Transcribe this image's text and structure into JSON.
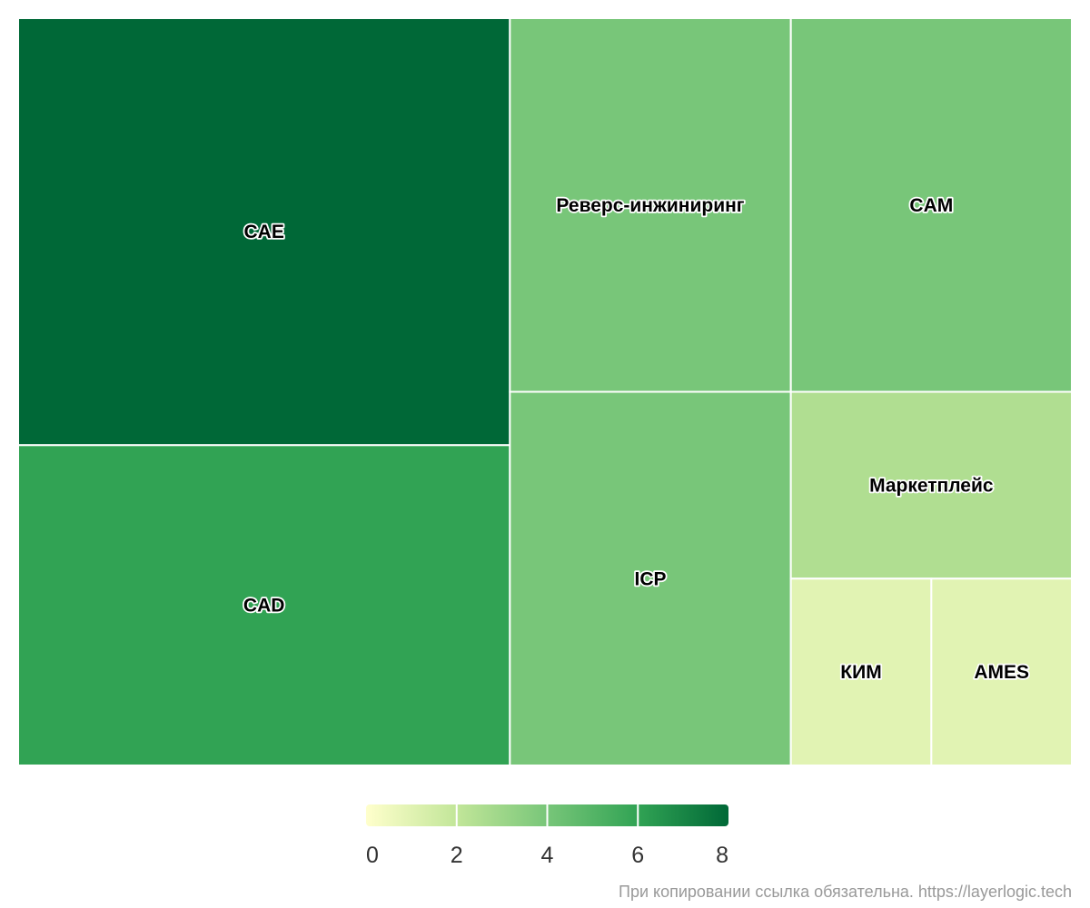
{
  "chart_data": {
    "type": "treemap",
    "title": "",
    "color_scale": {
      "min": 0,
      "max": 8,
      "ticks": [
        0,
        2,
        4,
        6,
        8
      ],
      "colors": [
        "#ffffcc",
        "#c2e699",
        "#78c679",
        "#31a354",
        "#006837"
      ]
    },
    "items": [
      {
        "name": "CAE",
        "value": 8,
        "color_value": 8
      },
      {
        "name": "CAD",
        "value": 6,
        "color_value": 6
      },
      {
        "name": "Реверс-инжиниринг",
        "value": 4,
        "color_value": 4
      },
      {
        "name": "CAM",
        "value": 4,
        "color_value": 4
      },
      {
        "name": "ICP",
        "value": 4,
        "color_value": 4
      },
      {
        "name": "Маркетплейс",
        "value": 2,
        "color_value": 2.5
      },
      {
        "name": "КИМ",
        "value": 1,
        "color_value": 1
      },
      {
        "name": "AMES",
        "value": 1,
        "color_value": 1
      }
    ]
  },
  "footer_text": "При копировании ссылка обязательна. https://layerlogic.tech"
}
